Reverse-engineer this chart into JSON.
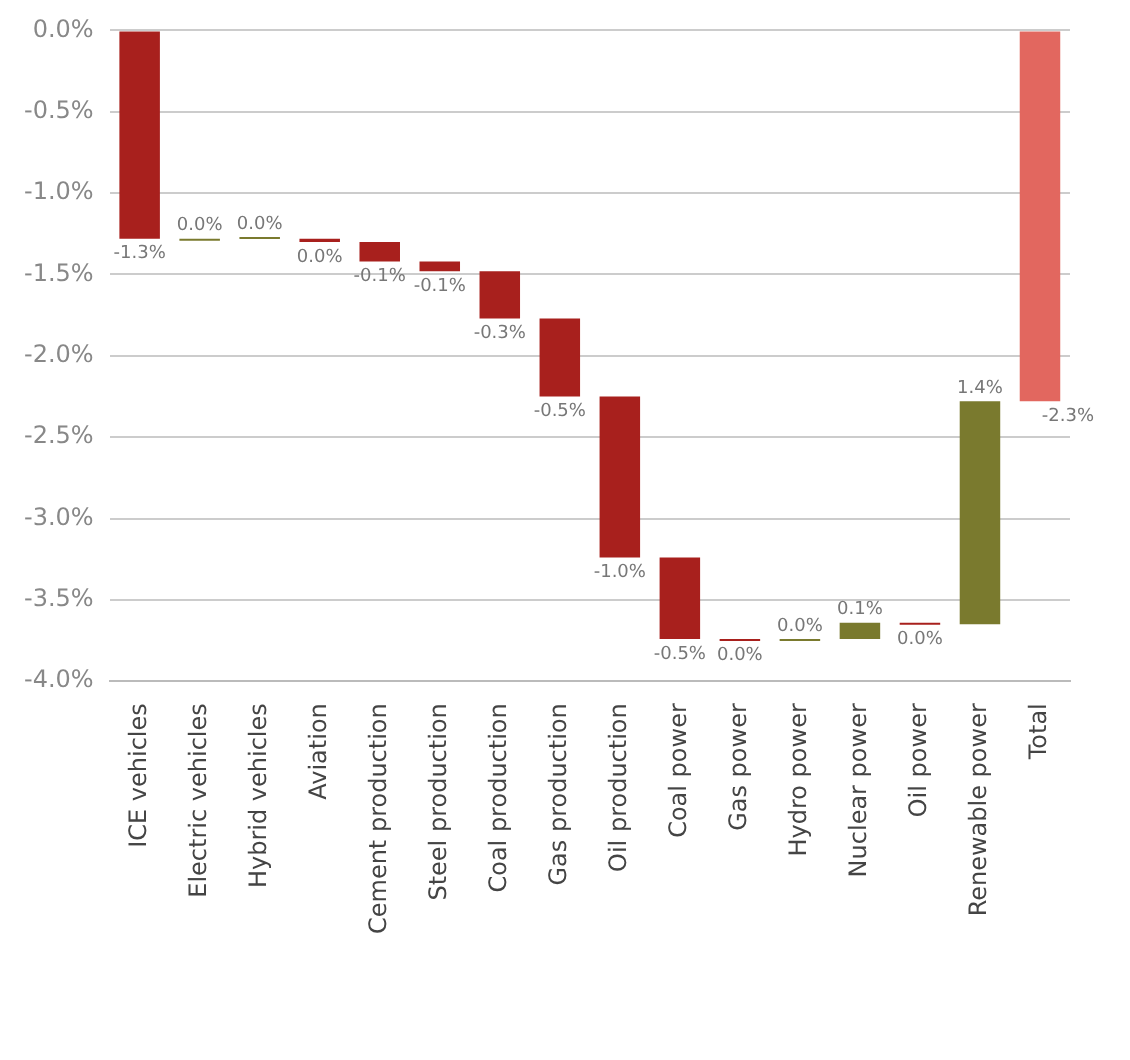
{
  "chart_data": {
    "type": "bar",
    "categories": [
      "ICE vehicles",
      "Electric vehicles",
      "Hybrid vehicles",
      "Aviation",
      "Cement production",
      "Steel production",
      "Coal production",
      "Gas production",
      "Oil production",
      "Coal power",
      "Gas power",
      "Hydro power",
      "Nuclear power",
      "Oil power",
      "Renewable power",
      "Total"
    ],
    "base": [
      0,
      -1.28,
      -1.28,
      -1.28,
      -1.3,
      -1.42,
      -1.48,
      -1.77,
      -2.25,
      -3.24,
      -3.74,
      -3.75,
      -3.74,
      -3.64,
      -3.65,
      0
    ],
    "values": [
      -1.28,
      0,
      0.01,
      -0.02,
      -0.12,
      -0.06,
      -0.29,
      -0.48,
      -0.99,
      -0.5,
      -0.01,
      0.01,
      0.1,
      -0.01,
      1.37,
      -2.28
    ],
    "value_labels": [
      "-1.3%",
      "0.0%",
      "0.0%",
      "0.0%",
      "-0.1%",
      "-0.1%",
      "-0.3%",
      "-0.5%",
      "-1.0%",
      "-0.5%",
      "0.0%",
      "0.0%",
      "0.1%",
      "0.0%",
      "1.4%",
      "-2.3%"
    ],
    "colors": [
      "#a8201d",
      "#7a7a2e",
      "#7a7a2e",
      "#a8201d",
      "#a8201d",
      "#a8201d",
      "#a8201d",
      "#a8201d",
      "#a8201d",
      "#a8201d",
      "#a8201d",
      "#7a7a2e",
      "#7a7a2e",
      "#a8201d",
      "#7a7a2e",
      "#e2675f"
    ],
    "ylim": [
      -4,
      0
    ],
    "yticks": [
      {
        "value": 0,
        "label": "0.0%"
      },
      {
        "value": -0.5,
        "label": "-0.5%"
      },
      {
        "value": -1,
        "label": "-1.0%"
      },
      {
        "value": -1.5,
        "label": "-1.5%"
      },
      {
        "value": -2,
        "label": "-2.0%"
      },
      {
        "value": -2.5,
        "label": "-2.5%"
      },
      {
        "value": -3,
        "label": "-3.0%"
      },
      {
        "value": -3.5,
        "label": "-3.5%"
      },
      {
        "value": -4,
        "label": "-4.0%"
      }
    ],
    "grid": "y",
    "legend": false
  }
}
